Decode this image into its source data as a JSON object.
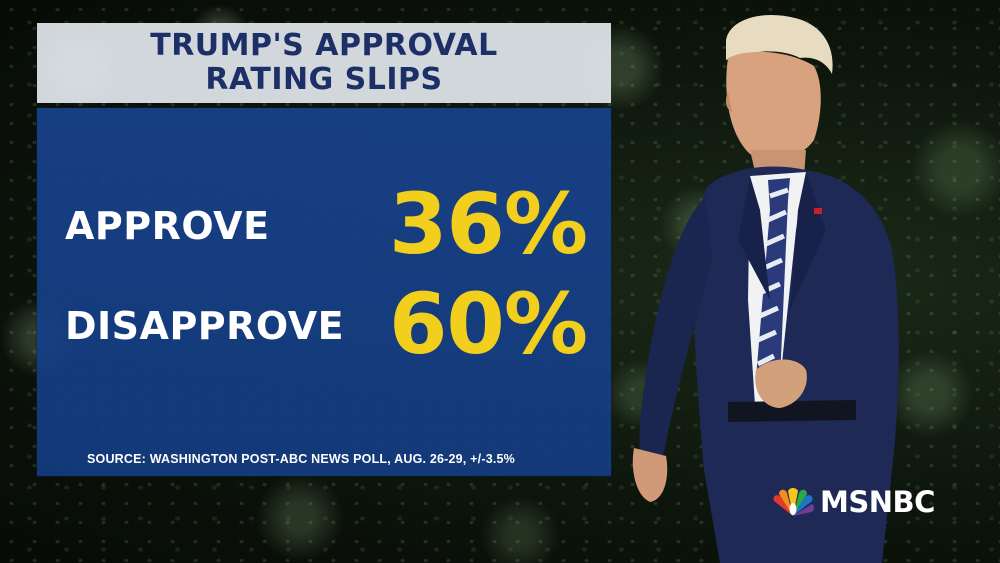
{
  "headline": {
    "line1": "TRUMP'S APPROVAL",
    "line2": "RATING SLIPS"
  },
  "poll": {
    "approve": {
      "label": "APPROVE",
      "value": "36%"
    },
    "disapprove": {
      "label": "DISAPPROVE",
      "value": "60%"
    }
  },
  "source": "SOURCE: WASHINGTON POST-ABC NEWS POLL, AUG. 26-29, +/-3.5%",
  "logo": {
    "text": "MSNBC",
    "icon": "peacock-icon"
  },
  "colors": {
    "panel_blue": "#17428c",
    "headline_text": "#1c2f66",
    "value_yellow": "#f2cf1d",
    "title_card": "#e1e6ec"
  }
}
